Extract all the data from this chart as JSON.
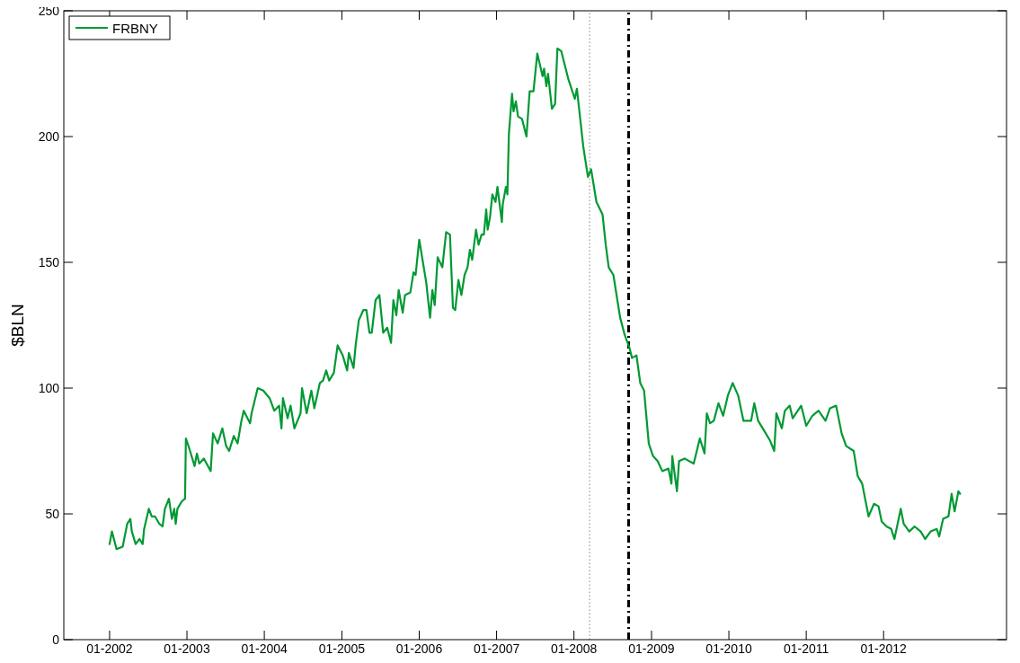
{
  "chart_data": {
    "type": "line",
    "ylabel": "$BLN",
    "xlim": [
      "2001-05-30",
      "2013-08-03"
    ],
    "ylim": [
      0,
      250
    ],
    "xticks": [
      {
        "value": "2002-01-01",
        "label": "01-2002"
      },
      {
        "value": "2003-01-01",
        "label": "01-2003"
      },
      {
        "value": "2004-01-01",
        "label": "01-2004"
      },
      {
        "value": "2005-01-01",
        "label": "01-2005"
      },
      {
        "value": "2006-01-01",
        "label": "01-2006"
      },
      {
        "value": "2007-01-01",
        "label": "01-2007"
      },
      {
        "value": "2008-01-01",
        "label": "01-2008"
      },
      {
        "value": "2009-01-01",
        "label": "01-2009"
      },
      {
        "value": "2010-01-01",
        "label": "01-2010"
      },
      {
        "value": "2011-01-01",
        "label": "01-2011"
      },
      {
        "value": "2012-01-01",
        "label": "01-2012"
      }
    ],
    "yticks": [
      0,
      50,
      100,
      150,
      200,
      250
    ],
    "grid": false,
    "legend": "top left",
    "line_style": "solid",
    "marker": "none",
    "ref_lines": [
      {
        "axis": "x",
        "value": "2008-03-15",
        "color": "#999999",
        "line_style": "dotted"
      },
      {
        "axis": "x",
        "value": "2008-09-15",
        "color": "#000000",
        "line_style": "dashed"
      }
    ],
    "series": [
      {
        "name": "FRBNY",
        "color": "#009933",
        "x": [
          "2002-01-01",
          "2002-01-12",
          "2002-02-03",
          "2002-03-04",
          "2002-03-25",
          "2002-04-09",
          "2002-04-16",
          "2002-05-04",
          "2002-05-22",
          "2002-06-06",
          "2002-06-13",
          "2002-07-05",
          "2002-07-19",
          "2002-08-03",
          "2002-08-24",
          "2002-09-08",
          "2002-09-19",
          "2002-10-08",
          "2002-10-22",
          "2002-11-02",
          "2002-11-09",
          "2002-11-17",
          "2002-12-08",
          "2002-12-23",
          "2002-12-27",
          "2003-01-12",
          "2003-02-06",
          "2003-02-17",
          "2003-02-28",
          "2003-03-22",
          "2003-04-23",
          "2003-05-04",
          "2003-05-26",
          "2003-06-17",
          "2003-07-05",
          "2003-07-19",
          "2003-08-10",
          "2003-08-28",
          "2003-09-15",
          "2003-09-26",
          "2003-10-26",
          "2003-11-02",
          "2003-12-01",
          "2003-12-27",
          "2004-01-26",
          "2004-02-17",
          "2004-03-11",
          "2004-03-22",
          "2004-03-29",
          "2004-04-20",
          "2004-05-04",
          "2004-05-22",
          "2004-06-20",
          "2004-06-27",
          "2004-07-19",
          "2004-08-10",
          "2004-08-24",
          "2004-09-19",
          "2004-10-04",
          "2004-10-19",
          "2004-11-02",
          "2004-11-24",
          "2004-12-12",
          "2005-01-05",
          "2005-01-26",
          "2005-02-03",
          "2005-02-25",
          "2005-03-07",
          "2005-03-22",
          "2005-04-12",
          "2005-04-27",
          "2005-05-11",
          "2005-05-22",
          "2005-06-09",
          "2005-06-27",
          "2005-07-15",
          "2005-08-03",
          "2005-08-21",
          "2005-09-01",
          "2005-09-15",
          "2005-09-26",
          "2005-10-15",
          "2005-10-26",
          "2005-11-20",
          "2005-12-05",
          "2005-12-15",
          "2006-01-01",
          "2006-02-03",
          "2006-02-21",
          "2006-03-04",
          "2006-03-15",
          "2006-03-29",
          "2006-04-20",
          "2006-05-08",
          "2006-05-26",
          "2006-06-09",
          "2006-06-20",
          "2006-07-05",
          "2006-07-19",
          "2006-08-03",
          "2006-08-17",
          "2006-08-28",
          "2006-09-08",
          "2006-09-26",
          "2006-10-08",
          "2006-10-22",
          "2006-11-02",
          "2006-11-13",
          "2006-11-20",
          "2006-12-01",
          "2006-12-12",
          "2006-12-27",
          "2007-01-05",
          "2007-01-26",
          "2007-01-30",
          "2007-02-14",
          "2007-02-21",
          "2007-02-28",
          "2007-03-15",
          "2007-03-22",
          "2007-04-02",
          "2007-04-12",
          "2007-05-01",
          "2007-05-22",
          "2007-06-06",
          "2007-06-24",
          "2007-07-12",
          "2007-08-06",
          "2007-08-13",
          "2007-08-24",
          "2007-09-01",
          "2007-09-19",
          "2007-10-04",
          "2007-10-15",
          "2007-11-02",
          "2007-12-05",
          "2008-01-05",
          "2008-01-15",
          "2008-02-14",
          "2008-03-07",
          "2008-03-22",
          "2008-04-16",
          "2008-05-15",
          "2008-05-30",
          "2008-06-13",
          "2008-07-05",
          "2008-08-06",
          "2008-08-28",
          "2008-09-19",
          "2008-10-01",
          "2008-10-22",
          "2008-11-09",
          "2008-11-27",
          "2008-12-19",
          "2009-01-08",
          "2009-01-30",
          "2009-02-21",
          "2009-03-22",
          "2009-04-05",
          "2009-04-09",
          "2009-05-01",
          "2009-05-11",
          "2009-06-06",
          "2009-07-19",
          "2009-08-17",
          "2009-09-08",
          "2009-09-19",
          "2009-10-04",
          "2009-10-22",
          "2009-11-13",
          "2009-12-05",
          "2009-12-27",
          "2010-01-19",
          "2010-02-14",
          "2010-03-11",
          "2010-04-16",
          "2010-05-01",
          "2010-05-19",
          "2010-06-17",
          "2010-07-15",
          "2010-08-03",
          "2010-08-13",
          "2010-09-08",
          "2010-09-22",
          "2010-10-15",
          "2010-10-29",
          "2010-12-08",
          "2011-01-01",
          "2011-01-30",
          "2011-02-28",
          "2011-04-02",
          "2011-04-23",
          "2011-05-22",
          "2011-06-17",
          "2011-07-08",
          "2011-08-13",
          "2011-09-01",
          "2011-09-22",
          "2011-10-22",
          "2011-11-17",
          "2011-12-08",
          "2011-12-23",
          "2012-01-15",
          "2012-02-06",
          "2012-02-21",
          "2012-03-22",
          "2012-04-05",
          "2012-05-01",
          "2012-05-26",
          "2012-06-24",
          "2012-07-15",
          "2012-08-10",
          "2012-09-08",
          "2012-09-19",
          "2012-10-08",
          "2012-11-02",
          "2012-11-17",
          "2012-12-01",
          "2012-12-19",
          "2012-12-27"
        ],
        "values": [
          38,
          43,
          36,
          37,
          46,
          48,
          43,
          38,
          40,
          38,
          44,
          52,
          49,
          49,
          46,
          45,
          52,
          56,
          48,
          52,
          46,
          52,
          55,
          56,
          80,
          76,
          69,
          74,
          70,
          72,
          67,
          82,
          78,
          84,
          77,
          75,
          81,
          78,
          87,
          91,
          86,
          90,
          100,
          99,
          96,
          91,
          93,
          84,
          96,
          88,
          93,
          84,
          90,
          100,
          90,
          99,
          92,
          102,
          103,
          107,
          103,
          106,
          117,
          113,
          107,
          114,
          108,
          117,
          127,
          131,
          131,
          122,
          122,
          135,
          137,
          122,
          124,
          118,
          135,
          129,
          139,
          130,
          137,
          138,
          146,
          145,
          159,
          142,
          128,
          139,
          133,
          152,
          148,
          162,
          161,
          132,
          131,
          143,
          137,
          145,
          148,
          155,
          151,
          163,
          157,
          161,
          161,
          171,
          163,
          168,
          177,
          174,
          180,
          166,
          173,
          180,
          177,
          201,
          217,
          210,
          214,
          208,
          207,
          200,
          218,
          218,
          233,
          224,
          227,
          220,
          225,
          211,
          213,
          235,
          234,
          223,
          215,
          219,
          196,
          184,
          187,
          174,
          169,
          157,
          148,
          145,
          128,
          121,
          116,
          112,
          113,
          102,
          99,
          78,
          73,
          71,
          67,
          68,
          62,
          73,
          59,
          71,
          72,
          70,
          80,
          74,
          90,
          86,
          87,
          94,
          89,
          97,
          102,
          97,
          87,
          87,
          94,
          87,
          83,
          79,
          75,
          90,
          84,
          91,
          93,
          88,
          93,
          85,
          89,
          91,
          87,
          92,
          93,
          82,
          77,
          75,
          65,
          62,
          49,
          54,
          53,
          47,
          45,
          44,
          40,
          52,
          46,
          43,
          45,
          43,
          40,
          43,
          44,
          41,
          48,
          49,
          58,
          51,
          59,
          58
        ]
      }
    ]
  }
}
